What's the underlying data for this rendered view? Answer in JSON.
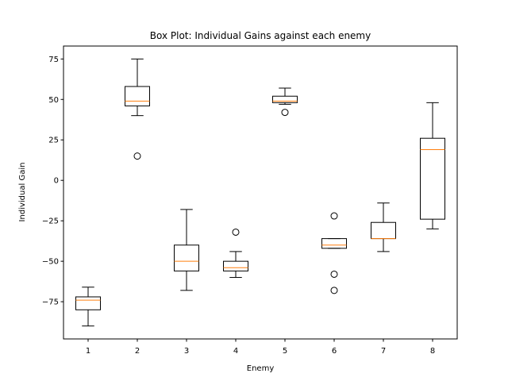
{
  "chart_data": {
    "type": "box",
    "title": "Box Plot: Individual Gains against each enemy",
    "xlabel": "Enemy",
    "ylabel": "Individual Gain",
    "categories": [
      "1",
      "2",
      "3",
      "4",
      "5",
      "6",
      "7",
      "8"
    ],
    "ylim": [
      -98,
      83
    ],
    "yticks": [
      -75,
      -50,
      -25,
      0,
      25,
      50,
      75
    ],
    "ytick_labels": [
      "−75",
      "−50",
      "−25",
      "0",
      "25",
      "50",
      "75"
    ],
    "grid": false,
    "colors": {
      "box": "#000000",
      "median": "#ff7f0e",
      "outlier": "#000000"
    },
    "boxes": [
      {
        "category": "1",
        "whislo": -90,
        "q1": -80,
        "med": -74,
        "q3": -72,
        "whishi": -66,
        "fliers": []
      },
      {
        "category": "2",
        "whislo": 40,
        "q1": 46,
        "med": 49,
        "q3": 58,
        "whishi": 75,
        "fliers": [
          15
        ]
      },
      {
        "category": "3",
        "whislo": -68,
        "q1": -56,
        "med": -50,
        "q3": -40,
        "whishi": -18,
        "fliers": []
      },
      {
        "category": "4",
        "whislo": -60,
        "q1": -56,
        "med": -54,
        "q3": -50,
        "whishi": -44,
        "fliers": [
          -32
        ]
      },
      {
        "category": "5",
        "whislo": 47,
        "q1": 48,
        "med": 49,
        "q3": 52,
        "whishi": 57,
        "fliers": [
          42
        ]
      },
      {
        "category": "6",
        "whislo": -42,
        "q1": -42,
        "med": -40,
        "q3": -36,
        "whishi": -36,
        "fliers": [
          -22,
          -58,
          -68
        ]
      },
      {
        "category": "7",
        "whislo": -44,
        "q1": -36,
        "med": -36,
        "q3": -26,
        "whishi": -14,
        "fliers": []
      },
      {
        "category": "8",
        "whislo": -30,
        "q1": -24,
        "med": 19,
        "q3": 26,
        "whishi": 48,
        "fliers": []
      }
    ]
  }
}
